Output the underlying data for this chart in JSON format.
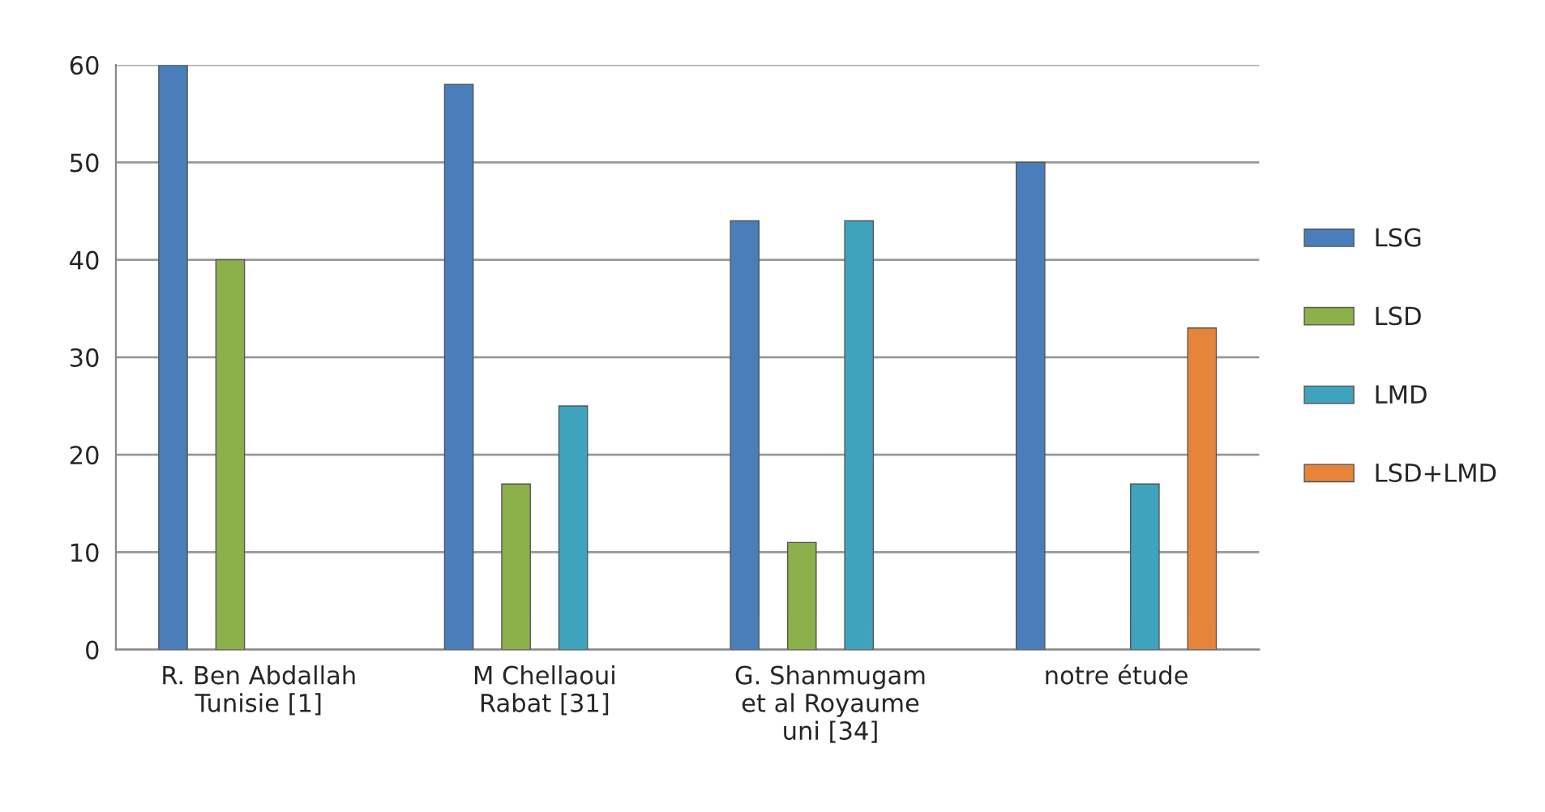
{
  "chart_data": {
    "type": "bar",
    "categories": [
      "R. Ben Abdallah\nTunisie [1]",
      "M Chellaoui\nRabat [31]",
      "G. Shanmugam\net al Royaume\nuni [34]",
      "notre étude"
    ],
    "series": [
      {
        "name": "LSG",
        "color": "#4a7ebb",
        "values": [
          60,
          58,
          44,
          50
        ]
      },
      {
        "name": "LSD",
        "color": "#8cb04a",
        "values": [
          40,
          17,
          11,
          null
        ]
      },
      {
        "name": "LMD",
        "color": "#3fa3bd",
        "values": [
          null,
          25,
          44,
          17
        ]
      },
      {
        "name": "LSD+LMD",
        "color": "#e6843a",
        "values": [
          null,
          null,
          null,
          33
        ]
      }
    ],
    "ylim": [
      0,
      60
    ],
    "yticks": [
      0,
      10,
      20,
      30,
      40,
      50,
      60
    ],
    "grid": "y",
    "legend": "right"
  }
}
